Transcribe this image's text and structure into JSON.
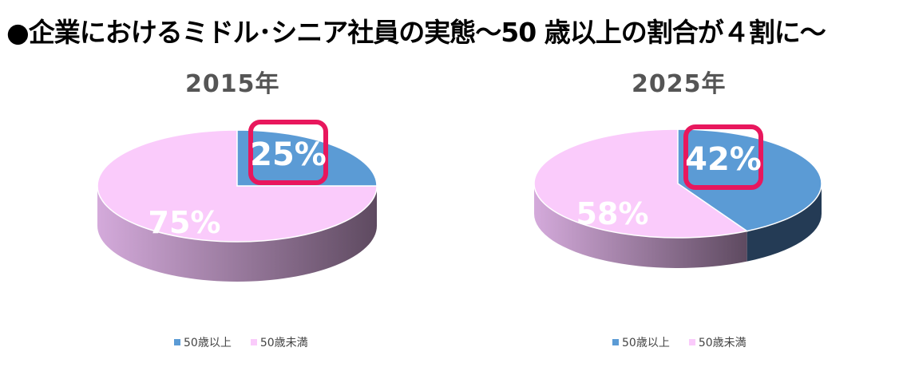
{
  "title": "●企業におけるミドル･シニア社員の実態〜50 歳以上の割合が４割に〜",
  "colors": {
    "over50": "#5b9bd5",
    "over50_dark": "#243b55",
    "under50": "#facbfb",
    "under50_side_light": "#d4aadb",
    "under50_side_dark": "#5e4a60",
    "highlight": "#e8175d"
  },
  "chart_data": [
    {
      "type": "pie",
      "title": "2015年",
      "categories": [
        "50歳以上",
        "50歳未満"
      ],
      "values": [
        25,
        75
      ],
      "labels": [
        "25%",
        "75%"
      ],
      "highlight_label": "25%",
      "legend": [
        "50歳以上",
        "50歳未満"
      ],
      "legend_position": "bottom"
    },
    {
      "type": "pie",
      "title": "2025年",
      "categories": [
        "50歳以上",
        "50歳未満"
      ],
      "values": [
        42,
        58
      ],
      "labels": [
        "42%",
        "58%"
      ],
      "highlight_label": "42%",
      "legend": [
        "50歳以上",
        "50歳未満"
      ],
      "legend_position": "bottom"
    }
  ]
}
